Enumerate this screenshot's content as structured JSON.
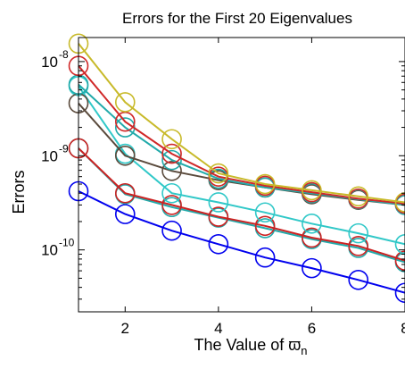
{
  "chart_data": {
    "type": "line",
    "title": "Errors for the First 20 Eigenvalues",
    "xlabel_text": "The Value of ",
    "xlabel_symbol": "ϖ",
    "xlabel_subscript": "n",
    "ylabel": "Errors",
    "x_ticks": [
      "2",
      "4",
      "6",
      "8"
    ],
    "y_scale": "log",
    "y_tick_base": "10",
    "y_tick_exponents": [
      "-8",
      "-9",
      "-10"
    ],
    "xlim": [
      1,
      8
    ],
    "ylim": [
      2.2e-11,
      1.8e-08
    ],
    "grid": false,
    "marker": "open-circle",
    "x": [
      1,
      2,
      3,
      4,
      5,
      6,
      7,
      8
    ],
    "series": [
      {
        "color": "#0000ee",
        "values": [
          4.2e-10,
          2.4e-10,
          1.6e-10,
          1.15e-10,
          8.3e-11,
          6.4e-11,
          4.8e-11,
          3.5e-11
        ]
      },
      {
        "color": "#22aaaa",
        "values": [
          1.2e-09,
          3.9e-10,
          2.85e-10,
          2.2e-10,
          1.7e-10,
          1.3e-10,
          1.05e-10,
          7.4e-11
        ]
      },
      {
        "color": "#cc2222",
        "values": [
          1.2e-09,
          4e-10,
          3e-10,
          2.25e-10,
          1.8e-10,
          1.35e-10,
          1.1e-10,
          7.7e-11
        ]
      },
      {
        "color": "#30c8c8",
        "values": [
          5.5e-09,
          1.05e-09,
          4e-10,
          3.2e-10,
          2.5e-10,
          1.9e-10,
          1.5e-10,
          1.15e-10
        ]
      },
      {
        "color": "#5a4a3c",
        "values": [
          3.6e-09,
          1e-09,
          6.9e-10,
          5.5e-10,
          4.6e-10,
          3.9e-10,
          3.4e-10,
          3e-10
        ]
      },
      {
        "color": "#22aaaa",
        "values": [
          5.7e-09,
          2e-09,
          9e-10,
          5.7e-10,
          4.6e-10,
          4e-10,
          3.45e-10,
          3e-10
        ]
      },
      {
        "color": "#d02828",
        "values": [
          9e-09,
          2.3e-09,
          1.05e-09,
          6e-10,
          4.8e-10,
          4.1e-10,
          3.5e-10,
          3.1e-10
        ]
      },
      {
        "color": "#c8ba2a",
        "values": [
          1.55e-08,
          3.7e-09,
          1.5e-09,
          6.5e-10,
          5e-10,
          4.3e-10,
          3.7e-10,
          3.2e-10
        ]
      }
    ]
  }
}
